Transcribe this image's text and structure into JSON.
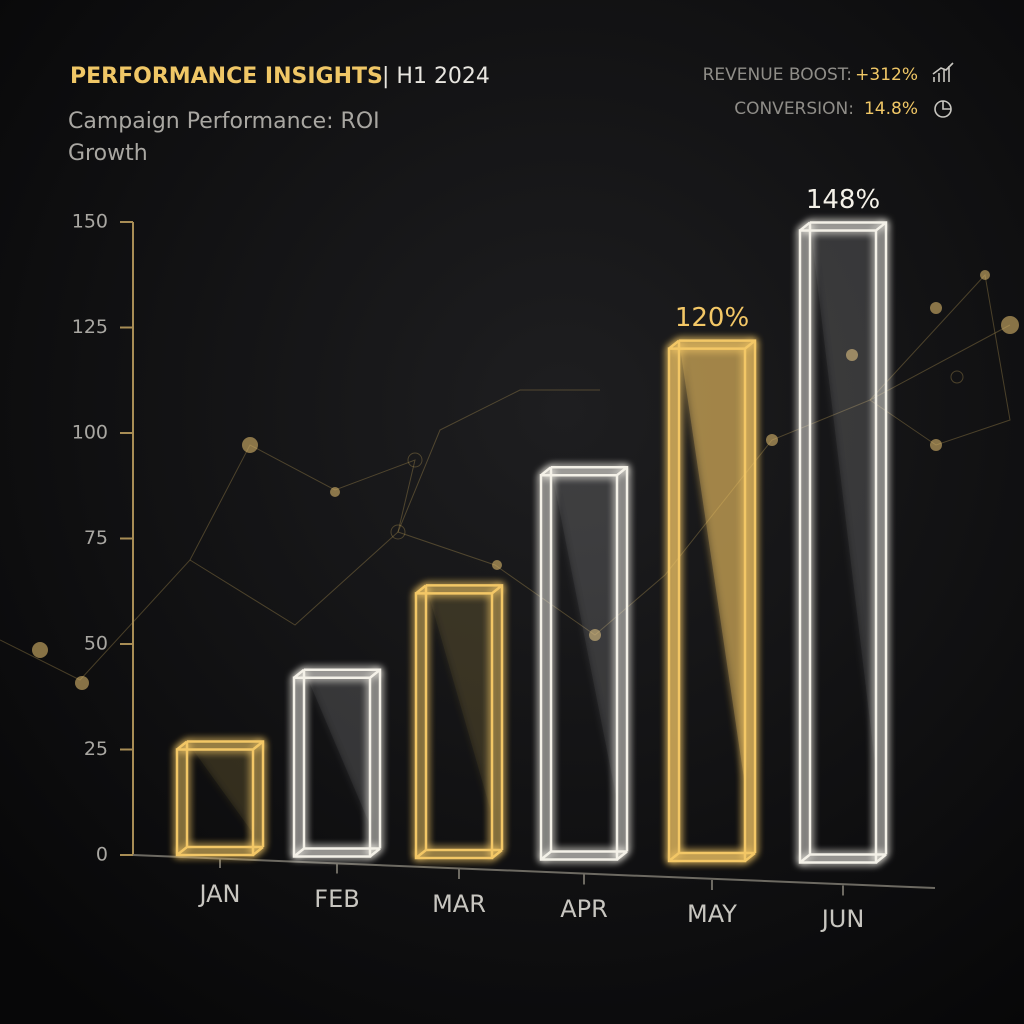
{
  "chart_data": {
    "type": "bar",
    "title": "PERFORMANCE INSIGHTS",
    "period": "| H1 2024",
    "subtitle": "Campaign Performance: ROI Growth",
    "kpis": [
      {
        "label": "REVENUE BOOST:",
        "value": "+312%"
      },
      {
        "label": "CONVERSION:",
        "value": "14.8%"
      }
    ],
    "categories": [
      "JAN",
      "FEB",
      "MAR",
      "APR",
      "MAY",
      "JUN"
    ],
    "values": [
      25,
      42,
      62,
      90,
      120,
      148
    ],
    "value_labels": [
      null,
      null,
      null,
      null,
      "120%",
      "148%"
    ],
    "colors": [
      "#f3c766",
      "#f4f1e8",
      "#f3c766",
      "#f4f1e8",
      "#f3c766",
      "#f4f1e8"
    ],
    "ylim": [
      0,
      150
    ],
    "yticks": [
      0,
      25,
      50,
      75,
      100,
      125,
      150
    ],
    "grid": false
  }
}
